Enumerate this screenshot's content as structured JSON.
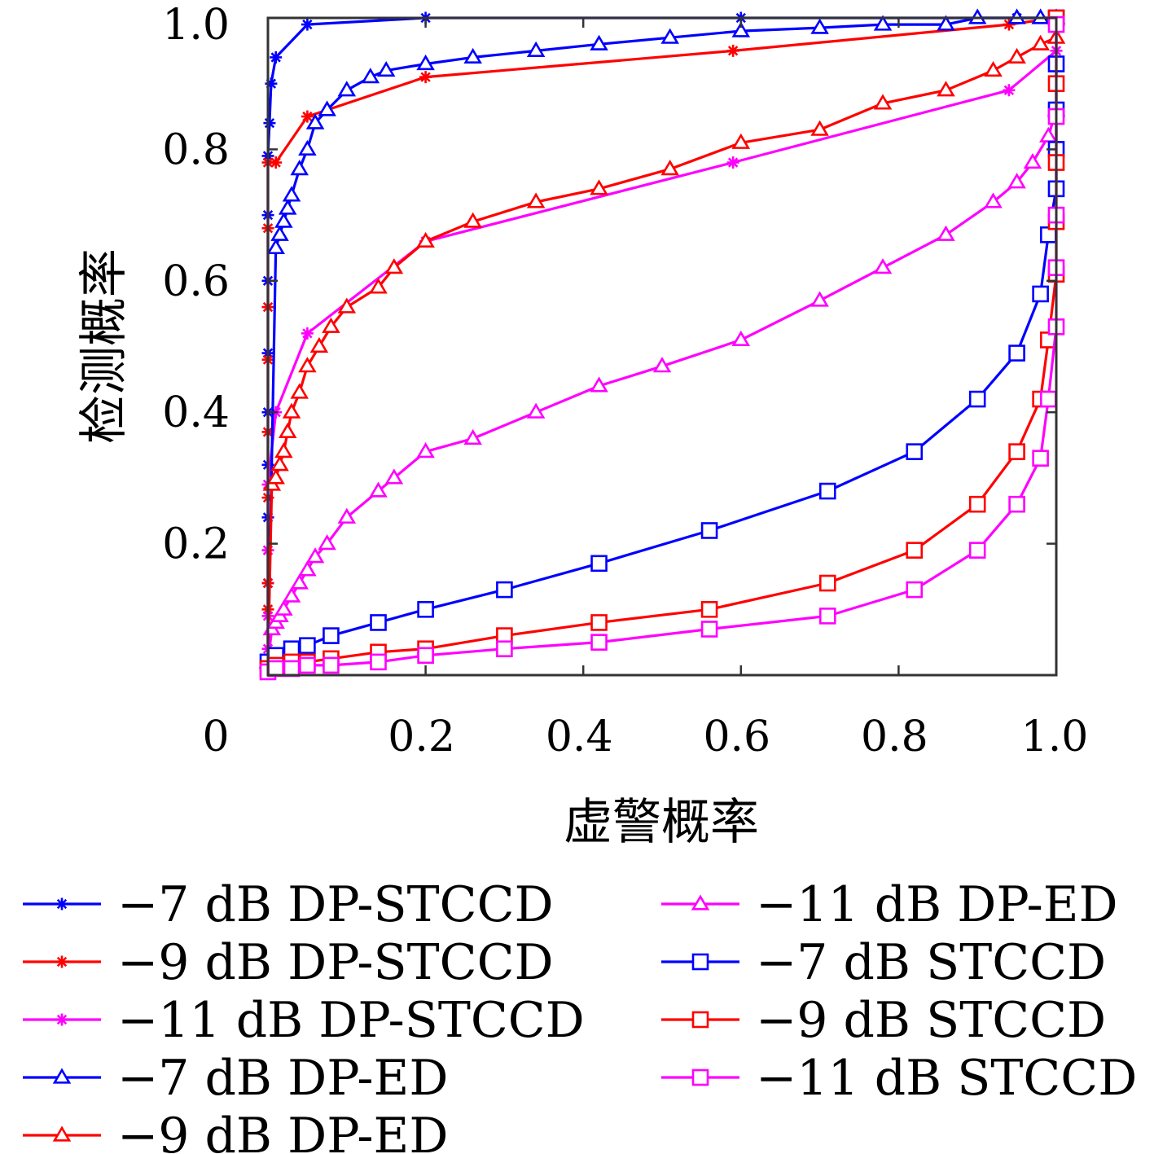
{
  "chart_data": {
    "type": "line",
    "xlabel": "虚警概率",
    "ylabel": "检测概率",
    "xlim": [
      0,
      1
    ],
    "ylim": [
      0,
      1
    ],
    "x_ticks": [
      "0",
      "0.2",
      "0.4",
      "0.6",
      "0.8",
      "1.0"
    ],
    "y_ticks": [
      "0.2",
      "0.4",
      "0.6",
      "0.8",
      "1.0"
    ],
    "grid": false,
    "legend_position": "bottom, two columns",
    "series": [
      {
        "name": "−7 dB DP-STCCD",
        "color": "#0000ff",
        "marker": "star",
        "x": [
          0,
          0,
          0,
          0,
          0,
          0,
          0,
          0,
          0,
          0.002,
          0.004,
          0.01,
          0.05,
          0.2,
          0.6,
          0.95,
          1.0
        ],
        "y": [
          0.02,
          0.14,
          0.24,
          0.32,
          0.4,
          0.49,
          0.6,
          0.7,
          0.79,
          0.84,
          0.9,
          0.94,
          0.99,
          1.0,
          1.0,
          1.0,
          1.0
        ]
      },
      {
        "name": "−9 dB DP-STCCD",
        "color": "#ff0000",
        "marker": "star",
        "x": [
          0,
          0,
          0,
          0,
          0,
          0,
          0,
          0,
          0,
          0,
          0.01,
          0.05,
          0.2,
          0.59,
          0.94,
          1.0
        ],
        "y": [
          0.02,
          0.1,
          0.14,
          0.19,
          0.27,
          0.37,
          0.48,
          0.56,
          0.68,
          0.78,
          0.78,
          0.85,
          0.91,
          0.95,
          0.99,
          1.0
        ]
      },
      {
        "name": "−11 dB DP-STCCD",
        "color": "#ff00ff",
        "marker": "star",
        "x": [
          0,
          0,
          0,
          0,
          0.01,
          0.05,
          0.2,
          0.59,
          0.94,
          1.0
        ],
        "y": [
          0.04,
          0.09,
          0.19,
          0.29,
          0.4,
          0.52,
          0.66,
          0.78,
          0.89,
          0.95
        ],
        "_note_": "x"
      },
      {
        "name": "−7 dB DP-ED",
        "color": "#0000ff",
        "marker": "triangle",
        "x": [
          0,
          0.01,
          0.015,
          0.02,
          0.025,
          0.03,
          0.04,
          0.05,
          0.06,
          0.075,
          0.1,
          0.13,
          0.15,
          0.2,
          0.26,
          0.34,
          0.42,
          0.51,
          0.6,
          0.7,
          0.78,
          0.86,
          0.9,
          0.95,
          0.98,
          1.0
        ],
        "y": [
          0.02,
          0.65,
          0.67,
          0.69,
          0.71,
          0.73,
          0.77,
          0.8,
          0.84,
          0.86,
          0.89,
          0.91,
          0.92,
          0.93,
          0.94,
          0.95,
          0.96,
          0.97,
          0.98,
          0.985,
          0.99,
          0.99,
          1.0,
          1.0,
          1.0,
          1.0
        ]
      },
      {
        "name": "−9 dB DP-ED",
        "color": "#ff0000",
        "marker": "triangle",
        "x": [
          0,
          0.005,
          0.01,
          0.015,
          0.02,
          0.025,
          0.03,
          0.04,
          0.05,
          0.065,
          0.08,
          0.1,
          0.14,
          0.16,
          0.2,
          0.26,
          0.34,
          0.42,
          0.51,
          0.6,
          0.7,
          0.78,
          0.86,
          0.92,
          0.95,
          0.98,
          1.0
        ],
        "y": [
          0.02,
          0.29,
          0.3,
          0.32,
          0.34,
          0.37,
          0.4,
          0.43,
          0.47,
          0.5,
          0.53,
          0.56,
          0.59,
          0.62,
          0.66,
          0.69,
          0.72,
          0.74,
          0.77,
          0.81,
          0.83,
          0.87,
          0.89,
          0.92,
          0.94,
          0.96,
          0.97
        ]
      },
      {
        "name": "−11 dB DP-ED",
        "color": "#ff00ff",
        "marker": "triangle",
        "x": [
          0,
          0.005,
          0.01,
          0.015,
          0.02,
          0.03,
          0.04,
          0.05,
          0.06,
          0.075,
          0.1,
          0.14,
          0.16,
          0.2,
          0.26,
          0.34,
          0.42,
          0.5,
          0.6,
          0.7,
          0.78,
          0.86,
          0.92,
          0.95,
          0.97,
          0.99,
          1.0
        ],
        "y": [
          0.02,
          0.07,
          0.08,
          0.09,
          0.1,
          0.12,
          0.14,
          0.16,
          0.18,
          0.2,
          0.24,
          0.28,
          0.3,
          0.34,
          0.36,
          0.4,
          0.44,
          0.47,
          0.51,
          0.57,
          0.62,
          0.67,
          0.72,
          0.75,
          0.78,
          0.82,
          0.86
        ]
      },
      {
        "name": "−7 dB STCCD",
        "color": "#0000ff",
        "marker": "square",
        "x": [
          0,
          0.01,
          0.03,
          0.05,
          0.08,
          0.14,
          0.2,
          0.3,
          0.42,
          0.56,
          0.71,
          0.82,
          0.9,
          0.95,
          0.98,
          0.99,
          1.0,
          1.0,
          1.0,
          1.0,
          1.0
        ],
        "y": [
          0.02,
          0.03,
          0.04,
          0.045,
          0.06,
          0.08,
          0.1,
          0.13,
          0.17,
          0.22,
          0.28,
          0.34,
          0.42,
          0.49,
          0.58,
          0.67,
          0.74,
          0.8,
          0.86,
          0.93,
          1.0
        ]
      },
      {
        "name": "−9 dB STCCD",
        "color": "#ff0000",
        "marker": "square",
        "x": [
          0,
          0.01,
          0.03,
          0.05,
          0.08,
          0.14,
          0.2,
          0.3,
          0.42,
          0.56,
          0.71,
          0.82,
          0.9,
          0.95,
          0.98,
          0.99,
          1.0,
          1.0,
          1.0,
          1.0,
          1.0
        ],
        "y": [
          0.01,
          0.015,
          0.02,
          0.02,
          0.025,
          0.035,
          0.04,
          0.06,
          0.08,
          0.1,
          0.14,
          0.19,
          0.26,
          0.34,
          0.42,
          0.51,
          0.61,
          0.69,
          0.78,
          0.9,
          1.0
        ]
      },
      {
        "name": "−11 dB STCCD",
        "color": "#ff00ff",
        "marker": "square",
        "x": [
          0,
          0.01,
          0.03,
          0.05,
          0.08,
          0.14,
          0.2,
          0.3,
          0.42,
          0.56,
          0.71,
          0.82,
          0.9,
          0.95,
          0.98,
          0.99,
          1.0,
          1.0,
          1.0,
          1.0,
          1.0
        ],
        "y": [
          0.005,
          0.01,
          0.01,
          0.015,
          0.015,
          0.02,
          0.03,
          0.04,
          0.05,
          0.07,
          0.09,
          0.13,
          0.19,
          0.26,
          0.33,
          0.42,
          0.53,
          0.62,
          0.7,
          0.85,
          0.99
        ]
      }
    ]
  }
}
